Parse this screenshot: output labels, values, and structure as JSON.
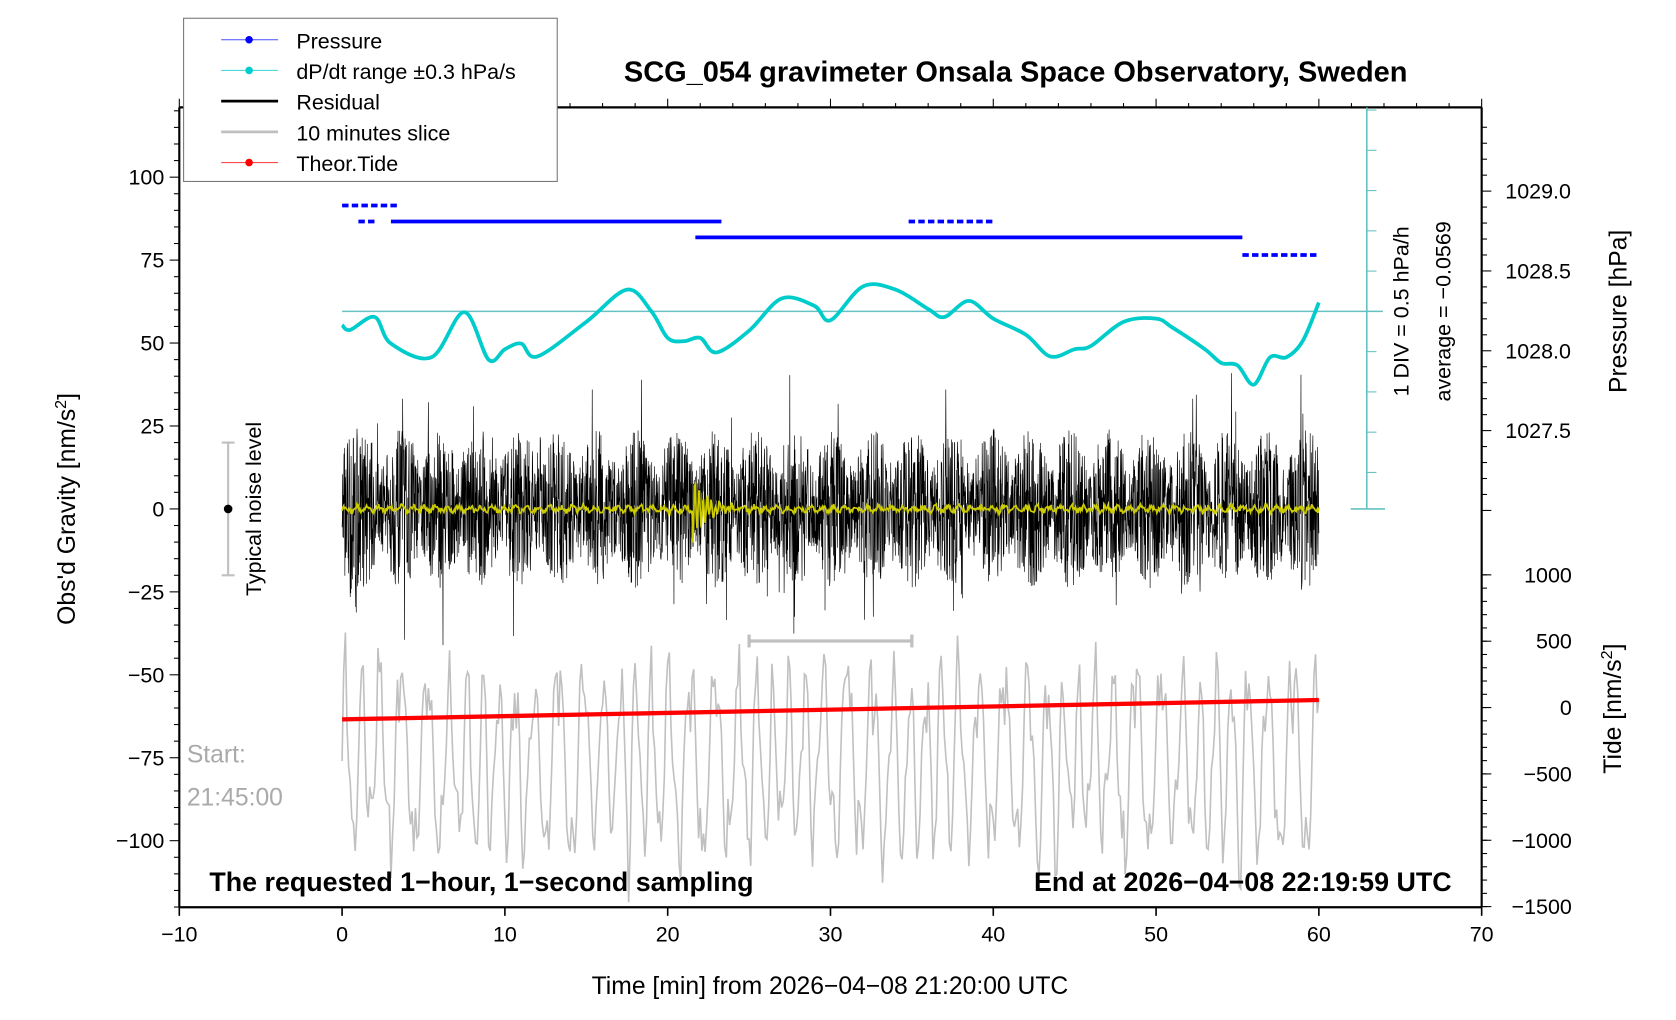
{
  "chart_data": {
    "type": "line",
    "title": "SCG_054 gravimeter Onsala Space Observatory, Sweden",
    "xlabel": "Time [min] from 2026−04−08 21:20:00 UTC",
    "ylabel_left": "Obs'd Gravity [nm/s²]",
    "ylabel_left_main": "Obs'd Gravity [nm/s",
    "ylabel_right_pressure": "Pressure [hPa]",
    "ylabel_right_tide_main": "Tide [nm/s",
    "sup2": "2",
    "xlim": [
      -10,
      70
    ],
    "ylim_left": [
      -120,
      121
    ],
    "x_ticks": [
      "−10",
      "0",
      "10",
      "20",
      "30",
      "40",
      "50",
      "60",
      "70"
    ],
    "x_tick_values": [
      -10,
      0,
      10,
      20,
      30,
      40,
      50,
      60,
      70
    ],
    "y_left_ticks": [
      "−100",
      "−75",
      "−50",
      "−25",
      "0",
      "25",
      "50",
      "75",
      "100"
    ],
    "y_left_tick_values": [
      -100,
      -75,
      -50,
      -25,
      0,
      25,
      50,
      75,
      100
    ],
    "y_pressure_ticks": [
      "1027.5",
      "1028.0",
      "1028.5",
      "1029.0"
    ],
    "y_pressure_tick_values": [
      1027.5,
      1028.0,
      1028.5,
      1029.0
    ],
    "y_tide_ticks": [
      "−1500",
      "−1000",
      "−500",
      "0",
      "500",
      "1000"
    ],
    "y_tide_tick_values": [
      -1500,
      -1000,
      -500,
      0,
      500,
      1000
    ],
    "legend": {
      "placement": "top-left",
      "entries": [
        {
          "label": "Pressure",
          "color": "#0000ff",
          "marker": true
        },
        {
          "label": "dP/dt range ±0.3 hPa/s",
          "color": "#00cccc",
          "marker": true
        },
        {
          "label": "Residual",
          "color": "#000000",
          "marker": false
        },
        {
          "label": "10 minutes slice",
          "color": "#c0c0c0",
          "marker": false
        },
        {
          "label": "Theor.Tide",
          "color": "#ff0000",
          "marker": true
        }
      ]
    },
    "annotations": {
      "div_note": "1 DIV = 0.5 hPa/h",
      "average_note": "average = −0.0569",
      "noise_label": "Typical noise level",
      "start_label": "Start:",
      "start_time": "21:45:00",
      "bottom_left": "The requested 1−hour, 1−second sampling",
      "bottom_right": "End at 2026−04−08 22:19:59 UTC"
    },
    "noise_level": {
      "x": -7,
      "range": [
        -20,
        20
      ]
    },
    "slice_window_min": [
      25,
      35
    ],
    "series": [
      {
        "name": "Pressure",
        "unit": "hPa",
        "segments": [
          {
            "x": [
              0,
              3.5
            ],
            "y": 1028.91
          },
          {
            "x": [
              1,
              2
            ],
            "y": 1028.81
          },
          {
            "x": [
              3,
              23.3
            ],
            "y": 1028.81
          },
          {
            "x": [
              34.8,
              40
            ],
            "y": 1028.81
          },
          {
            "x": [
              21.7,
              55.3
            ],
            "y": 1028.71
          },
          {
            "x": [
              55.3,
              60
            ],
            "y": 1028.6
          }
        ]
      },
      {
        "name": "dP/dt",
        "unit": "hPa/h",
        "x": [
          0,
          0.5,
          2,
          3,
          5.5,
          7.5,
          9,
          10,
          11,
          12,
          15,
          17.5,
          19,
          20,
          21,
          22,
          23,
          25,
          27,
          29,
          30,
          32,
          34,
          36,
          37,
          38.5,
          40,
          42,
          43.5,
          45,
          46,
          48,
          50,
          51,
          53,
          54,
          55,
          56,
          57,
          58,
          59,
          60
        ],
        "y": [
          -0.17,
          -0.23,
          -0.07,
          -0.4,
          -0.57,
          -0.01,
          -0.6,
          -0.47,
          -0.4,
          -0.56,
          -0.13,
          0.27,
          0,
          -0.33,
          -0.37,
          -0.33,
          -0.51,
          -0.24,
          0.16,
          0.07,
          -0.11,
          0.31,
          0.27,
          0.03,
          -0.07,
          0.13,
          -0.09,
          -0.29,
          -0.56,
          -0.47,
          -0.43,
          -0.13,
          -0.09,
          -0.2,
          -0.47,
          -0.64,
          -0.67,
          -0.91,
          -0.57,
          -0.57,
          -0.37,
          0.11
        ]
      },
      {
        "name": "Theor.Tide",
        "unit": "nm/s2",
        "x": [
          0,
          60
        ],
        "y": [
          -89,
          57
        ]
      },
      {
        "name": "Residual",
        "unit": "nm/s2",
        "x_range": [
          0,
          60
        ],
        "amplitude": 30
      },
      {
        "name": "10 minutes slice",
        "unit": "nm/s2",
        "x_range": [
          0,
          60
        ],
        "center": -76,
        "amplitude": 35
      }
    ]
  }
}
